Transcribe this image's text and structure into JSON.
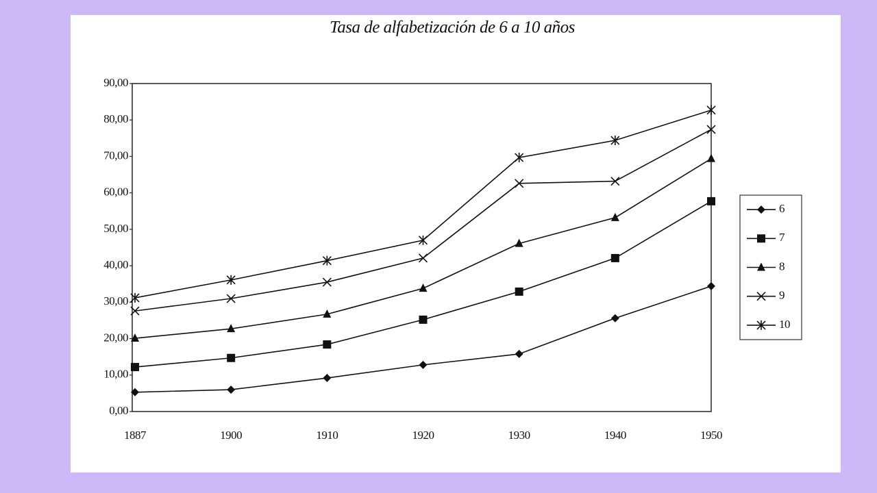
{
  "chart_data": {
    "type": "line",
    "title": "Tasa de alfabetización de 6 a 10 años",
    "categories": [
      "1887",
      "1900",
      "1910",
      "1920",
      "1930",
      "1940",
      "1950"
    ],
    "series": [
      {
        "name": "6",
        "color": "#111111",
        "marker": "diamond",
        "values": [
          5.3,
          6.0,
          9.2,
          12.8,
          15.8,
          25.6,
          34.4
        ]
      },
      {
        "name": "7",
        "color": "#111111",
        "marker": "square",
        "values": [
          12.2,
          14.7,
          18.4,
          25.2,
          32.9,
          42.1,
          57.7
        ]
      },
      {
        "name": "8",
        "color": "#111111",
        "marker": "triangle",
        "values": [
          20.1,
          22.7,
          26.7,
          33.8,
          46.1,
          53.2,
          69.4
        ]
      },
      {
        "name": "9",
        "color": "#111111",
        "marker": "cross",
        "values": [
          27.6,
          31.0,
          35.5,
          42.1,
          62.6,
          63.2,
          77.4
        ]
      },
      {
        "name": "10",
        "color": "#111111",
        "marker": "star",
        "values": [
          31.2,
          36.1,
          41.4,
          47.0,
          69.7,
          74.4,
          82.7
        ]
      }
    ],
    "ylim": [
      0,
      90
    ],
    "yticks": [
      {
        "value": 0,
        "label": "0,00"
      },
      {
        "value": 10,
        "label": "10,00"
      },
      {
        "value": 20,
        "label": "20,00"
      },
      {
        "value": 30,
        "label": "30,00"
      },
      {
        "value": 40,
        "label": "40,00"
      },
      {
        "value": 50,
        "label": "50,00"
      },
      {
        "value": 60,
        "label": "60,00"
      },
      {
        "value": 70,
        "label": "70,00"
      },
      {
        "value": 80,
        "label": "80,00"
      },
      {
        "value": 90,
        "label": "90,00"
      }
    ],
    "legend": "right"
  }
}
